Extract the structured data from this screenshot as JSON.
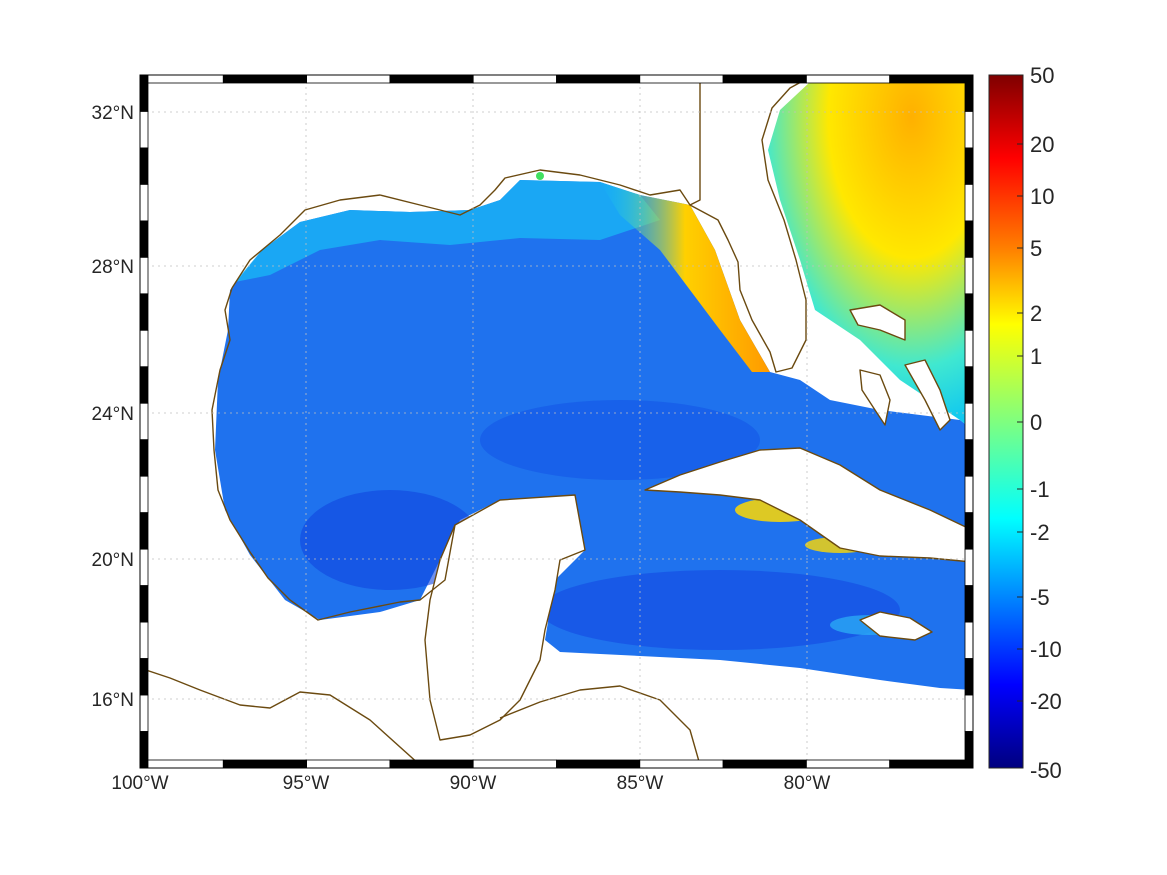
{
  "map": {
    "lon_ticks": [
      "100°W",
      "95°W",
      "90°W",
      "85°W",
      "80°W"
    ],
    "lat_ticks": [
      "32°N",
      "28°N",
      "24°N",
      "20°N",
      "16°N"
    ],
    "lon_values": [
      -100,
      -95,
      -90,
      -85,
      -80
    ],
    "lat_values": [
      32,
      28,
      24,
      20,
      16
    ],
    "coastline_color": "#6b4a10",
    "land_color": "#ffffff"
  },
  "colorbar": {
    "tick_labels": [
      "50",
      "20",
      "10",
      "5",
      "2",
      "1",
      "0",
      "-1",
      "-2",
      "-5",
      "-10",
      "-20",
      "-50"
    ],
    "tick_values": [
      50,
      20,
      10,
      5,
      2,
      1,
      0,
      -1,
      -2,
      -5,
      -10,
      -20,
      -50
    ],
    "colormap": "jet",
    "colors_top_to_bottom": [
      "#7f0000",
      "#ff0000",
      "#ff7f00",
      "#ffff00",
      "#7fff7f",
      "#00ffff",
      "#007fff",
      "#0000ff",
      "#00007f"
    ]
  }
}
